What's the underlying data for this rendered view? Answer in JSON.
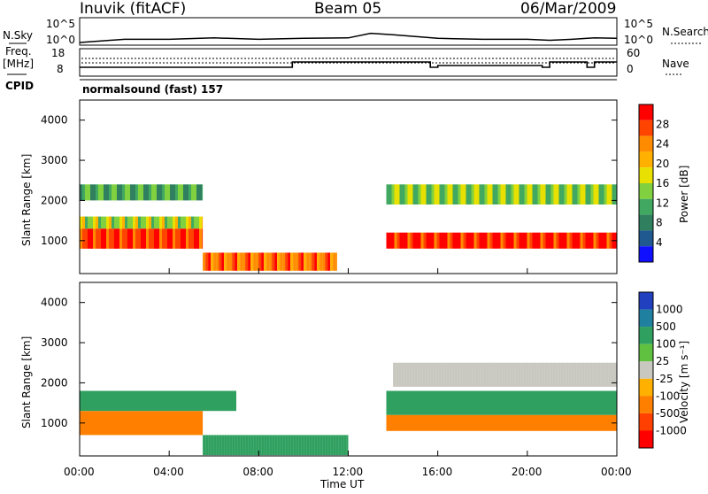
{
  "header": {
    "station": "Inuvik (fitACF)",
    "beam": "Beam 05",
    "date": "06/Mar/2009"
  },
  "sky_panel": {
    "left_label": "N.Sky",
    "right_label": "N.Search",
    "tick_top": "10^5",
    "tick_bottom": "10^0"
  },
  "freq_panel": {
    "left_label_line1": "Freq.",
    "left_label_line2": "[MHz]",
    "right_label": "Nave",
    "left_ticks": [
      "18",
      "8"
    ],
    "right_ticks": [
      "60",
      "0"
    ]
  },
  "cpid": {
    "label": "CPID",
    "program": "normalsound (fast) 157"
  },
  "panels": {
    "ylabel": "Slant Range [km]",
    "xlabel": "Time UT",
    "yticks": [
      "4000",
      "3000",
      "2000",
      "1000"
    ]
  },
  "colorbars": {
    "power": {
      "label": "Power [dB]",
      "ticks": [
        "28",
        "24",
        "20",
        "16",
        "12",
        "8",
        "4"
      ],
      "colors": [
        "#ff0000",
        "#ff4400",
        "#ff8c00",
        "#ffb000",
        "#e8e000",
        "#80d040",
        "#40a860",
        "#308060",
        "#205890",
        "#1010ff"
      ]
    },
    "velocity": {
      "label": "Velocity [m s⁻¹]",
      "ticks": [
        "1000",
        "500",
        "100",
        "25",
        "-25",
        "-100",
        "-500",
        "-1000"
      ],
      "colors": [
        "#2040c0",
        "#2080a0",
        "#30a060",
        "#60c040",
        "#c8c8c0",
        "#ffb000",
        "#ff8000",
        "#ff4000",
        "#ff0000"
      ]
    }
  },
  "chart_data": [
    {
      "type": "line",
      "title": "N.Sky / N.Search",
      "x": [
        "00:00",
        "02:00",
        "04:00",
        "06:00",
        "08:00",
        "10:00",
        "12:00",
        "13:00",
        "14:00",
        "16:00",
        "18:00",
        "20:00",
        "21:00",
        "22:00",
        "23:00",
        "24:00"
      ],
      "series": [
        {
          "name": "N.Sky",
          "values": [
            1,
            5,
            5,
            10,
            5,
            8,
            10,
            100,
            50,
            8,
            5,
            5,
            3,
            5,
            10,
            8
          ]
        }
      ],
      "ylim": [
        1,
        100000
      ],
      "log_scale": true
    },
    {
      "type": "line",
      "title": "Freq. [MHz] / Nave",
      "x": [
        "00:00",
        "09:00",
        "09:30",
        "15:40",
        "16:00",
        "20:40",
        "21:00",
        "22:40",
        "23:00",
        "24:00"
      ],
      "series": [
        {
          "name": "Freq.",
          "values": [
            11,
            11,
            14,
            11,
            12,
            11,
            14,
            11,
            14,
            14
          ]
        }
      ],
      "ylim": [
        8,
        18
      ]
    },
    {
      "type": "heatmap",
      "title": "Power [dB]",
      "xlabel": "Time UT",
      "ylabel": "Slant Range [km]",
      "xticks": [
        "00:00",
        "04:00",
        "08:00",
        "12:00",
        "16:00",
        "20:00",
        "00:00"
      ],
      "ylim": [
        180,
        4500
      ],
      "zlim": [
        0,
        30
      ],
      "bands": [
        {
          "t_start": 0,
          "t_end": 5.5,
          "range": [
            800,
            1300
          ],
          "power": 28
        },
        {
          "t_start": 0,
          "t_end": 5.5,
          "range": [
            1300,
            1600
          ],
          "power": 16
        },
        {
          "t_start": 0,
          "t_end": 5.5,
          "range": [
            2000,
            2400
          ],
          "power": 12
        },
        {
          "t_start": 5.5,
          "t_end": 11.5,
          "range": [
            250,
            700
          ],
          "power": 24
        },
        {
          "t_start": 13.7,
          "t_end": 24,
          "range": [
            800,
            1200
          ],
          "power": 28
        },
        {
          "t_start": 13.7,
          "t_end": 24,
          "range": [
            1900,
            2400
          ],
          "power": 14
        }
      ]
    },
    {
      "type": "heatmap",
      "title": "Velocity [m s-1]",
      "xlabel": "Time UT",
      "ylabel": "Slant Range [km]",
      "xticks": [
        "00:00",
        "04:00",
        "08:00",
        "12:00",
        "16:00",
        "20:00",
        "00:00"
      ],
      "ylim": [
        180,
        4500
      ],
      "zlim": [
        -1000,
        1000
      ],
      "bands": [
        {
          "t_start": 0,
          "t_end": 5.5,
          "range": [
            700,
            1300
          ],
          "velocity": -100
        },
        {
          "t_start": 0,
          "t_end": 7,
          "range": [
            1300,
            1800
          ],
          "velocity": 100
        },
        {
          "t_start": 5.5,
          "t_end": 12,
          "range": [
            200,
            700
          ],
          "velocity": 100
        },
        {
          "t_start": 13.7,
          "t_end": 24,
          "range": [
            800,
            1200
          ],
          "velocity": -100
        },
        {
          "t_start": 13.7,
          "t_end": 24,
          "range": [
            1200,
            1800
          ],
          "velocity": 100
        },
        {
          "t_start": 14,
          "t_end": 24,
          "range": [
            1900,
            2500
          ],
          "velocity": 0
        }
      ]
    }
  ]
}
